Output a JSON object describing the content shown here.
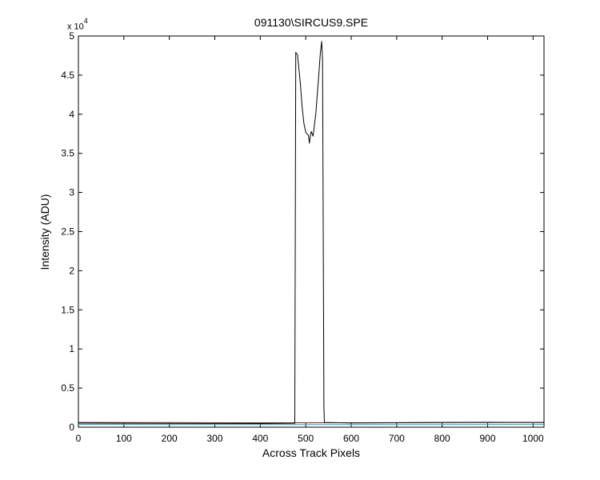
{
  "chart_data": {
    "type": "line",
    "title": "091130\\SIRCUS9.SPE",
    "xlabel": "Across Track Pixels",
    "ylabel": "Intensity (ADU)",
    "y_multiplier_base": "x 10",
    "y_multiplier_exponent": "4",
    "xlim": [
      0,
      1024
    ],
    "ylim": [
      0,
      50000
    ],
    "x_ticks": [
      0,
      100,
      200,
      300,
      400,
      500,
      600,
      700,
      800,
      900,
      1000
    ],
    "y_ticks": [
      0,
      5000,
      10000,
      15000,
      20000,
      25000,
      30000,
      35000,
      40000,
      45000,
      50000
    ],
    "y_tick_labels": [
      "0",
      "0.5",
      "1",
      "1.5",
      "2",
      "2.5",
      "3",
      "3.5",
      "4",
      "4.5",
      "5"
    ],
    "grid": false,
    "legend": "none",
    "series": [
      {
        "color": "#000000",
        "x": [
          0,
          100,
          200,
          300,
          400,
          476,
          478,
          482,
          488,
          492,
          496,
          500,
          503,
          506,
          508,
          510,
          512,
          516,
          522,
          528,
          532,
          535,
          537,
          540,
          541,
          600,
          700,
          800,
          900,
          1024
        ],
        "y": [
          520,
          500,
          480,
          470,
          460,
          500,
          47900,
          47600,
          44000,
          41000,
          38800,
          37700,
          37500,
          37300,
          36300,
          37200,
          37800,
          37200,
          40000,
          44500,
          47800,
          49300,
          47000,
          2500,
          600,
          530,
          560,
          600,
          620,
          600
        ]
      },
      {
        "color": "#6e2020",
        "x": [
          0,
          200,
          400,
          600,
          800,
          1024
        ],
        "y": [
          600,
          580,
          560,
          560,
          580,
          600
        ]
      },
      {
        "color": "#1fa2c7",
        "x": [
          0,
          200,
          400,
          600,
          800,
          1024
        ],
        "y": [
          350,
          340,
          330,
          330,
          340,
          350
        ]
      }
    ]
  }
}
